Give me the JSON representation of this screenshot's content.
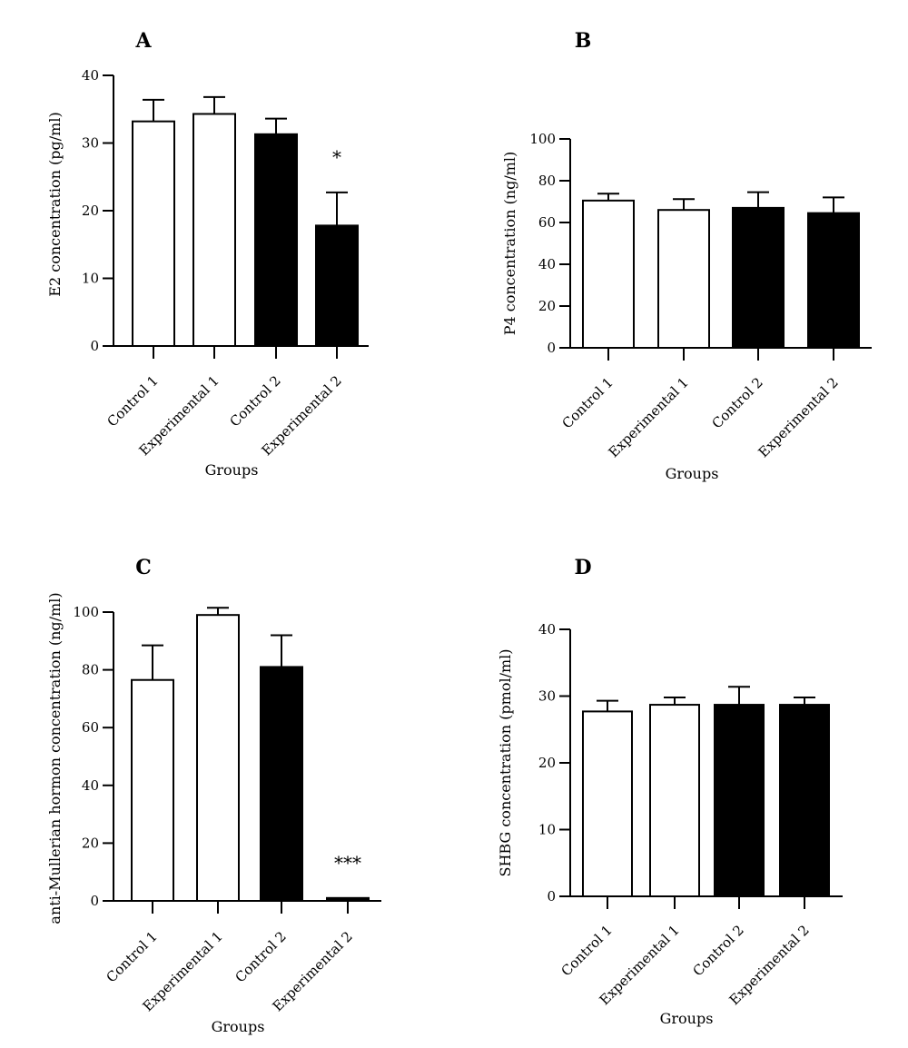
{
  "chart_data": [
    {
      "type": "bar",
      "panel": "A",
      "categories": [
        "Control 1",
        "Experimental 1",
        "Control 2",
        "Experimental 2"
      ],
      "values": [
        33.2,
        34.3,
        31.3,
        17.8
      ],
      "errors": [
        3.2,
        2.5,
        2.3,
        4.9
      ],
      "fills": [
        "#ffffff",
        "#ffffff",
        "#000000",
        "#000000"
      ],
      "annotations": [
        "",
        "",
        "",
        "*"
      ],
      "ylabel": "E2 concentration (pg/ml)",
      "xlabel": "Groups",
      "ylim": [
        0,
        40
      ],
      "yticks": [
        0,
        10,
        20,
        30,
        40
      ],
      "grid": false
    },
    {
      "type": "bar",
      "panel": "B",
      "categories": [
        "Control 1",
        "Experimental 1",
        "Control 2",
        "Experimental 2"
      ],
      "values": [
        70.5,
        66,
        67,
        64.5
      ],
      "errors": [
        3.3,
        5.2,
        7.5,
        7.5
      ],
      "fills": [
        "#ffffff",
        "#ffffff",
        "#000000",
        "#000000"
      ],
      "annotations": [
        "",
        "",
        "",
        ""
      ],
      "ylabel": "P4 concentration (ng/ml)",
      "xlabel": "Groups",
      "ylim": [
        0,
        100
      ],
      "yticks": [
        0,
        20,
        40,
        60,
        80,
        100
      ],
      "grid": false
    },
    {
      "type": "bar",
      "panel": "C",
      "categories": [
        "Control 1",
        "Experimental 1",
        "Control 2",
        "Experimental 2"
      ],
      "values": [
        76.5,
        99,
        81,
        1.0
      ],
      "errors": [
        12,
        2.5,
        11,
        0
      ],
      "fills": [
        "#ffffff",
        "#ffffff",
        "#000000",
        "#000000"
      ],
      "annotations": [
        "",
        "",
        "",
        "***"
      ],
      "ylabel": "anti-Mullerian hormon concentration (ng/ml)",
      "xlabel": "Groups",
      "ylim": [
        0,
        100
      ],
      "yticks": [
        0,
        20,
        40,
        60,
        80,
        100
      ],
      "grid": false
    },
    {
      "type": "bar",
      "panel": "D",
      "categories": [
        "Control 1",
        "Experimental 1",
        "Control 2",
        "Experimental 2"
      ],
      "values": [
        27.7,
        28.7,
        28.7,
        28.7
      ],
      "errors": [
        1.6,
        1.1,
        2.7,
        1.1
      ],
      "fills": [
        "#ffffff",
        "#ffffff",
        "#000000",
        "#000000"
      ],
      "annotations": [
        "",
        "",
        "",
        ""
      ],
      "ylabel": "SHBG concentration (pmol/ml)",
      "xlabel": "Groups",
      "ylim": [
        0,
        40
      ],
      "yticks": [
        0,
        10,
        20,
        30,
        40
      ],
      "grid": false
    }
  ]
}
